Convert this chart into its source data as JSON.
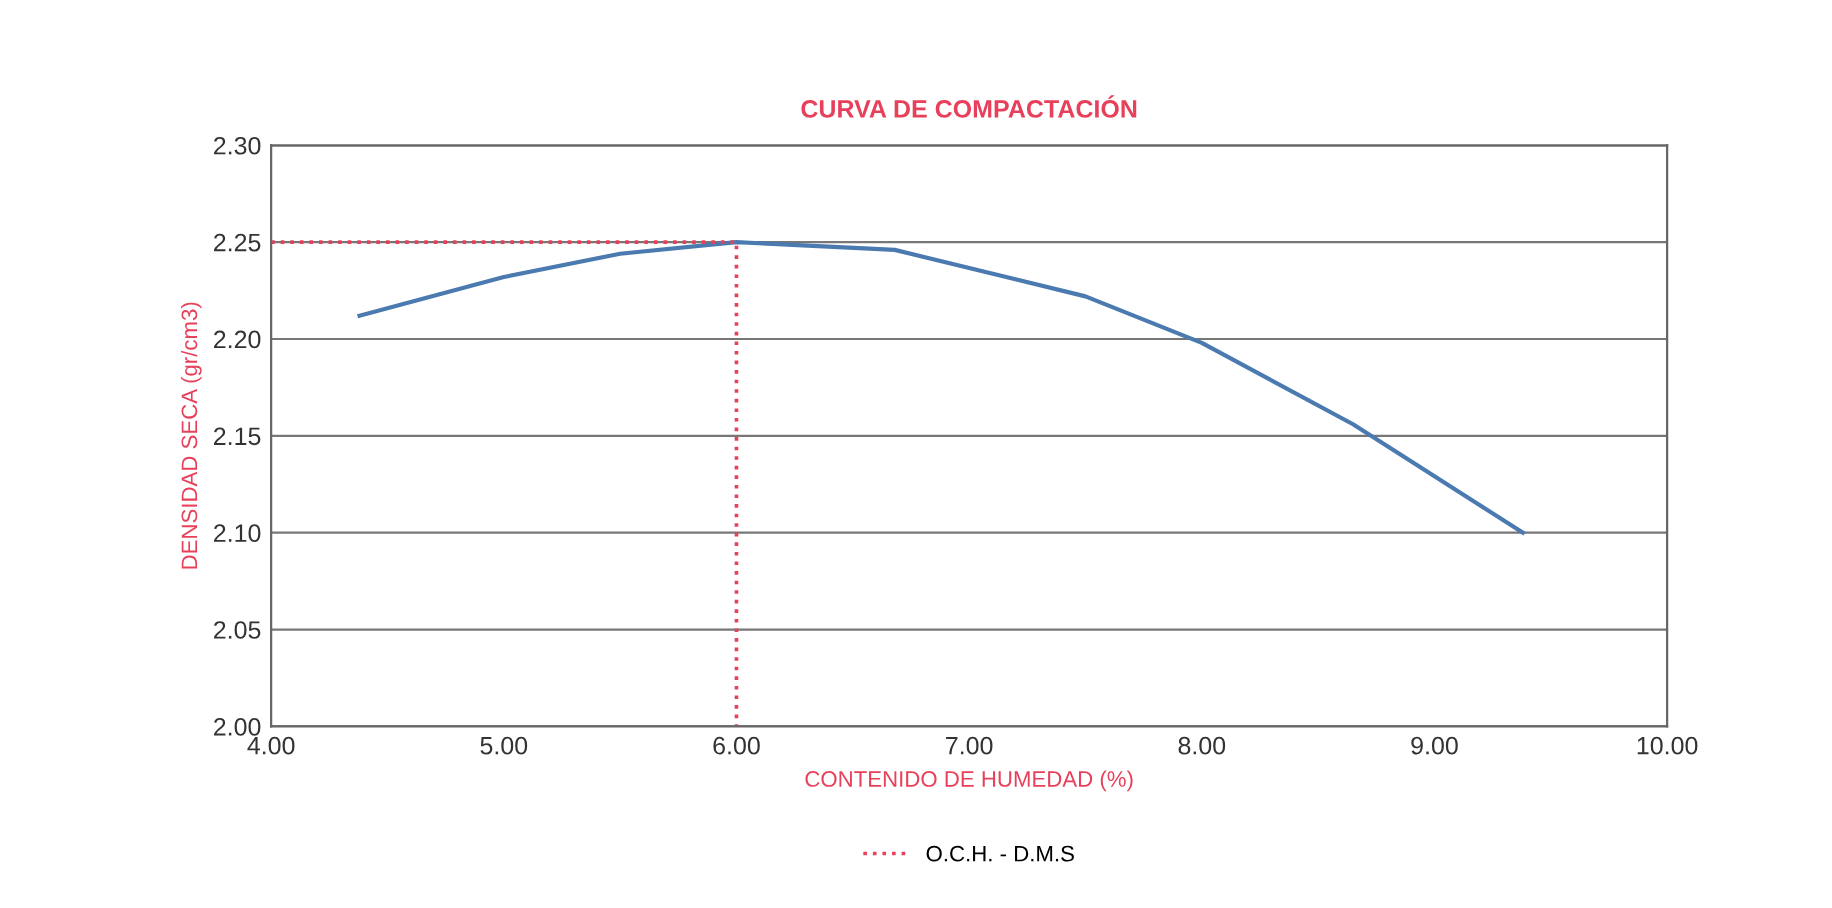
{
  "chart_data": {
    "type": "line",
    "title": "CURVA DE COMPACTACIÓN",
    "xlabel": "CONTENIDO DE HUMEDAD (%)",
    "ylabel": "DENSIDAD SECA (gr/cm3)",
    "series": [
      {
        "color": "#4a7ab0",
        "x": [
          4.38,
          5.0,
          5.5,
          6.0,
          6.68,
          7.5,
          8.0,
          8.65,
          9.38
        ],
        "values": [
          2.212,
          2.232,
          2.244,
          2.25,
          2.246,
          2.222,
          2.198,
          2.156,
          2.1
        ],
        "line_style": "solid"
      },
      {
        "name": "O.C.H. - D.M.S",
        "color": "#e8405a",
        "x": [
          4.0,
          6.0,
          6.0
        ],
        "values": [
          2.25,
          2.25,
          2.0
        ],
        "line_style": "dotted"
      }
    ],
    "xlim": [
      4.0,
      10.0
    ],
    "xticks": [
      {
        "value": 4,
        "label": "4.00"
      },
      {
        "value": 5,
        "label": "5.00"
      },
      {
        "value": 6,
        "label": "6.00"
      },
      {
        "value": 7,
        "label": "7.00"
      },
      {
        "value": 8,
        "label": "8.00"
      },
      {
        "value": 9,
        "label": "9.00"
      },
      {
        "value": 10,
        "label": "10.00"
      }
    ],
    "ylim": [
      2.0,
      2.3
    ],
    "yticks": [
      {
        "value": 2.0,
        "label": "2.00"
      },
      {
        "value": 2.05,
        "label": "2.05"
      },
      {
        "value": 2.1,
        "label": "2.10"
      },
      {
        "value": 2.15,
        "label": "2.15"
      },
      {
        "value": 2.2,
        "label": "2.20"
      },
      {
        "value": 2.25,
        "label": "2.25"
      },
      {
        "value": 2.3,
        "label": "2.30"
      }
    ],
    "grid": "y",
    "legend": "bottom",
    "marker": "none"
  }
}
